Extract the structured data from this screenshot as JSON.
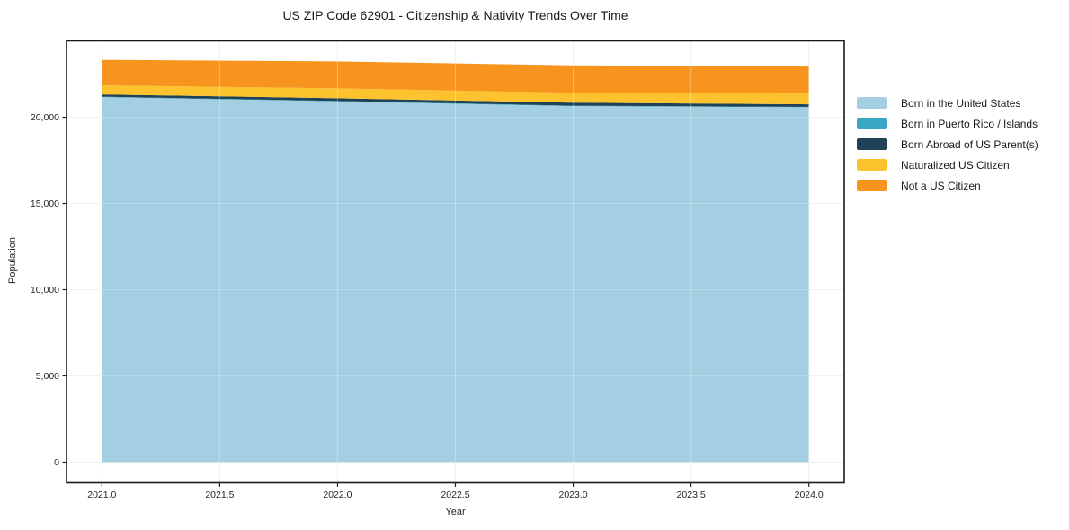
{
  "title": "US ZIP Code 62901 - Citizenship & Nativity Trends Over Time",
  "chart_data": {
    "type": "area",
    "stacked": true,
    "title": "US ZIP Code 62901 - Citizenship & Nativity Trends Over Time",
    "xlabel": "Year",
    "ylabel": "Population",
    "x": [
      2021,
      2022,
      2023,
      2024
    ],
    "series": [
      {
        "name": "Born in the United States",
        "color": "#a4cfe3",
        "values": [
          21170,
          20920,
          20650,
          20580
        ]
      },
      {
        "name": "Born in Puerto Rico / Islands",
        "color": "#3aa8c4",
        "values": [
          25,
          25,
          25,
          25
        ]
      },
      {
        "name": "Born Abroad of US Parent(s)",
        "color": "#1f4254",
        "values": [
          130,
          155,
          170,
          145
        ]
      },
      {
        "name": "Naturalized US Citizen",
        "color": "#fcc32e",
        "values": [
          520,
          575,
          575,
          625
        ]
      },
      {
        "name": "Not a US Citizen",
        "color": "#f7941e",
        "values": [
          1480,
          1560,
          1590,
          1565
        ]
      }
    ],
    "totals": [
      23325,
      23235,
      23010,
      22915
    ],
    "x_tick_values": [
      2021.0,
      2021.5,
      2022.0,
      2022.5,
      2023.0,
      2023.5,
      2024.0
    ],
    "x_tick_labels": [
      "2021.0",
      "2021.5",
      "2022.0",
      "2022.5",
      "2023.0",
      "2023.5",
      "2024.0"
    ],
    "y_tick_values": [
      0,
      5000,
      10000,
      15000,
      20000
    ],
    "y_tick_labels": [
      "0",
      "5,000",
      "10,000",
      "15,000",
      "20,000"
    ],
    "xlim": [
      2020.85,
      2024.15
    ],
    "ylim": [
      -1200,
      24430
    ],
    "grid": true,
    "legend_position": "right-outside",
    "gridline_color": "#ebebeb",
    "border_color": "#1a1a1a",
    "tick_color": "#262626"
  }
}
